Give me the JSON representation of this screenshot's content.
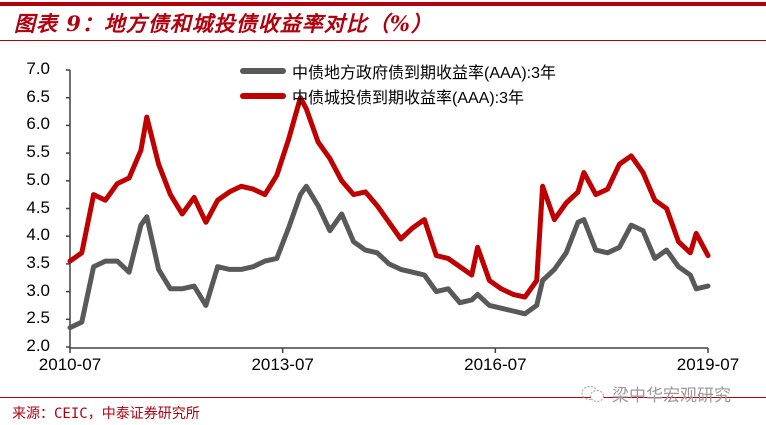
{
  "header": {
    "title": "图表 9：地方债和城投债收益率对比（%）"
  },
  "footer": {
    "source": "来源：CEIC，中泰证券研究所",
    "watermark": "梁中华宏观研究",
    "watermark_icon": "wechat-icon"
  },
  "colors": {
    "accent": "#b3000f",
    "series_gray": "#595959",
    "series_red": "#c00000"
  },
  "chart_data": {
    "type": "line",
    "title": "地方债和城投债收益率对比（%）",
    "xlabel": "",
    "ylabel": "",
    "ylim": [
      2.0,
      7.0
    ],
    "yticks": [
      "7.0",
      "6.5",
      "6.0",
      "5.5",
      "5.0",
      "4.5",
      "4.0",
      "3.5",
      "3.0",
      "2.5",
      "2.0"
    ],
    "xticks": [
      "2010-07",
      "2013-07",
      "2016-07",
      "2019-07"
    ],
    "grid": false,
    "legend_position": "top",
    "x": [
      "2010-07",
      "2010-09",
      "2010-11",
      "2011-01",
      "2011-03",
      "2011-05",
      "2011-07",
      "2011-08",
      "2011-10",
      "2011-12",
      "2012-02",
      "2012-04",
      "2012-06",
      "2012-08",
      "2012-10",
      "2012-12",
      "2013-02",
      "2013-04",
      "2013-06",
      "2013-08",
      "2013-10",
      "2013-11",
      "2014-01",
      "2014-03",
      "2014-05",
      "2014-07",
      "2014-09",
      "2014-11",
      "2015-01",
      "2015-03",
      "2015-05",
      "2015-07",
      "2015-09",
      "2015-11",
      "2016-01",
      "2016-03",
      "2016-04",
      "2016-06",
      "2016-08",
      "2016-10",
      "2016-12",
      "2017-02",
      "2017-03",
      "2017-05",
      "2017-07",
      "2017-09",
      "2017-10",
      "2017-12",
      "2018-02",
      "2018-04",
      "2018-06",
      "2018-08",
      "2018-10",
      "2018-12",
      "2019-02",
      "2019-04",
      "2019-05",
      "2019-07"
    ],
    "series": [
      {
        "name": "中债地方政府债到期收益率(AAA):3年",
        "color": "#595959",
        "values": [
          2.35,
          2.45,
          3.45,
          3.55,
          3.55,
          3.35,
          4.2,
          4.35,
          3.4,
          3.05,
          3.05,
          3.1,
          2.75,
          3.45,
          3.4,
          3.4,
          3.45,
          3.55,
          3.6,
          4.15,
          4.75,
          4.9,
          4.55,
          4.1,
          4.4,
          3.9,
          3.75,
          3.7,
          3.5,
          3.4,
          3.35,
          3.3,
          3.0,
          3.05,
          2.8,
          2.85,
          2.95,
          2.75,
          2.7,
          2.65,
          2.6,
          2.75,
          3.2,
          3.4,
          3.7,
          4.25,
          4.3,
          3.75,
          3.7,
          3.8,
          4.2,
          4.1,
          3.6,
          3.75,
          3.45,
          3.3,
          3.05,
          3.1
        ]
      },
      {
        "name": "中债城投债到期收益率(AAA):3年",
        "color": "#c00000",
        "values": [
          3.55,
          3.7,
          4.75,
          4.65,
          4.95,
          5.05,
          5.55,
          6.15,
          5.3,
          4.75,
          4.4,
          4.7,
          4.25,
          4.65,
          4.8,
          4.9,
          4.85,
          4.75,
          5.1,
          5.75,
          6.5,
          6.3,
          5.7,
          5.4,
          5.0,
          4.75,
          4.8,
          4.55,
          4.25,
          3.95,
          4.15,
          4.3,
          3.65,
          3.6,
          3.45,
          3.3,
          3.8,
          3.2,
          3.05,
          2.95,
          2.9,
          3.2,
          4.9,
          4.3,
          4.6,
          4.8,
          5.15,
          4.75,
          4.85,
          5.3,
          5.45,
          5.15,
          4.65,
          4.5,
          3.9,
          3.7,
          4.05,
          3.65
        ]
      }
    ]
  }
}
